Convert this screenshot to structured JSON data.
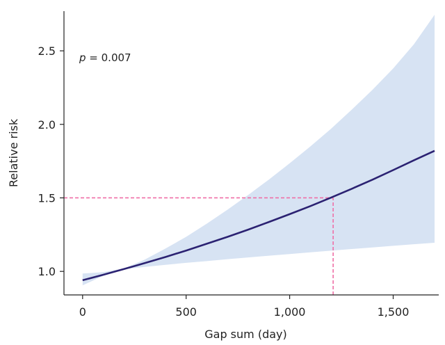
{
  "colors": {
    "fit": "#2b2272",
    "band": "#d7e3f3",
    "reference": "#ef6fa6"
  },
  "annotation": {
    "p_symbol": "p",
    "p_text": " = 0.007"
  },
  "chart_data": {
    "type": "line",
    "title": "",
    "xlabel": "Gap sum (day)",
    "ylabel": "Relative risk",
    "xlim": [
      -90,
      1720
    ],
    "ylim": [
      0.84,
      2.77
    ],
    "x_ticks": [
      {
        "value": 0,
        "label": "0"
      },
      {
        "value": 500,
        "label": "500"
      },
      {
        "value": 1000,
        "label": "1,000"
      },
      {
        "value": 1500,
        "label": "1,500"
      }
    ],
    "y_ticks": [
      {
        "value": 1.0,
        "label": "1.0"
      },
      {
        "value": 1.5,
        "label": "1.5"
      },
      {
        "value": 2.0,
        "label": "2.0"
      },
      {
        "value": 2.5,
        "label": "2.5"
      }
    ],
    "grid": false,
    "series": [
      {
        "values": [
          {
            "x": 0,
            "y": 0.94
          },
          {
            "x": 100,
            "y": 0.977
          },
          {
            "x": 200,
            "y": 1.016
          },
          {
            "x": 300,
            "y": 1.056
          },
          {
            "x": 400,
            "y": 1.098
          },
          {
            "x": 500,
            "y": 1.142
          },
          {
            "x": 600,
            "y": 1.188
          },
          {
            "x": 700,
            "y": 1.235
          },
          {
            "x": 800,
            "y": 1.284
          },
          {
            "x": 900,
            "y": 1.336
          },
          {
            "x": 1000,
            "y": 1.389
          },
          {
            "x": 1100,
            "y": 1.444
          },
          {
            "x": 1200,
            "y": 1.502
          },
          {
            "x": 1300,
            "y": 1.562
          },
          {
            "x": 1400,
            "y": 1.624
          },
          {
            "x": 1500,
            "y": 1.689
          },
          {
            "x": 1600,
            "y": 1.756
          },
          {
            "x": 1700,
            "y": 1.82
          }
        ]
      }
    ],
    "confidence_band": [
      {
        "x": 0,
        "lower": 0.905,
        "upper": 0.985
      },
      {
        "x": 100,
        "lower": 0.97,
        "upper": 0.995
      },
      {
        "x": 200,
        "lower": 1.015,
        "upper": 1.02
      },
      {
        "x": 300,
        "lower": 1.03,
        "upper": 1.08
      },
      {
        "x": 400,
        "lower": 1.045,
        "upper": 1.155
      },
      {
        "x": 500,
        "lower": 1.058,
        "upper": 1.235
      },
      {
        "x": 600,
        "lower": 1.07,
        "upper": 1.325
      },
      {
        "x": 700,
        "lower": 1.083,
        "upper": 1.42
      },
      {
        "x": 800,
        "lower": 1.095,
        "upper": 1.52
      },
      {
        "x": 900,
        "lower": 1.107,
        "upper": 1.625
      },
      {
        "x": 1000,
        "lower": 1.118,
        "upper": 1.735
      },
      {
        "x": 1100,
        "lower": 1.13,
        "upper": 1.85
      },
      {
        "x": 1200,
        "lower": 1.141,
        "upper": 1.97
      },
      {
        "x": 1300,
        "lower": 1.152,
        "upper": 2.1
      },
      {
        "x": 1400,
        "lower": 1.163,
        "upper": 2.235
      },
      {
        "x": 1500,
        "lower": 1.174,
        "upper": 2.38
      },
      {
        "x": 1600,
        "lower": 1.185,
        "upper": 2.545
      },
      {
        "x": 1700,
        "lower": 1.195,
        "upper": 2.745
      }
    ],
    "reference_lines": [
      {
        "axis": "y",
        "value": 1.5,
        "x_from": -90,
        "x_to": 1210
      },
      {
        "axis": "x",
        "value": 1210,
        "y_from": 0.84,
        "y_to": 1.5
      }
    ]
  }
}
